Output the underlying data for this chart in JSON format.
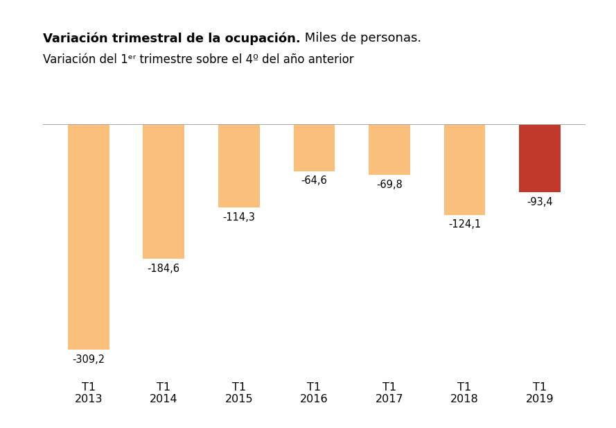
{
  "categories": [
    "T1\n2013",
    "T1\n2014",
    "T1\n2015",
    "T1\n2016",
    "T1\n2017",
    "T1\n2018",
    "T1\n2019"
  ],
  "values": [
    -309.2,
    -184.6,
    -114.3,
    -64.6,
    -69.8,
    -124.1,
    -93.4
  ],
  "bar_colors": [
    "#FBBF7C",
    "#FBBF7C",
    "#FBBF7C",
    "#FBBF7C",
    "#FBBF7C",
    "#FBBF7C",
    "#C0392B"
  ],
  "title_bold": "Variación trimestral de la ocupación.",
  "title_normal": " Miles de personas.",
  "subtitle": "Variación del 1ᵉʳ trimestre sobre el 4º del año anterior",
  "ylim": [
    -340,
    0
  ],
  "background_color": "#ffffff",
  "value_labels": [
    "-309,2",
    "-184,6",
    "-114,3",
    "-64,6",
    "-69,8",
    "-124,1",
    "-93,4"
  ],
  "label_fontsize": 10.5,
  "tick_fontsize": 11.5,
  "title_fontsize": 13,
  "subtitle_fontsize": 12
}
